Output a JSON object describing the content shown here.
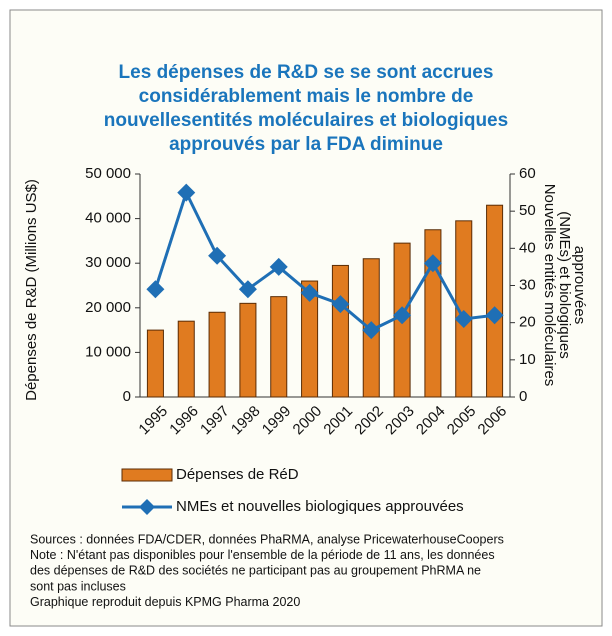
{
  "chart_data": {
    "type": "bar_line",
    "title": [
      "Les dépenses de R&D se se sont accrues",
      "considérablement mais le nombre de",
      "nouvellesentités moléculaires et biologiques",
      "approuvés par la FDA diminue"
    ],
    "y_label": "Dépenses de R&D (Millions US$)",
    "y2_label": [
      "Nouvelles entités moléculaires",
      "(NMEs) et biologiques",
      "approuvées"
    ],
    "categories": [
      "1995",
      "1996",
      "1997",
      "1998",
      "1999",
      "2000",
      "2001",
      "2002",
      "2003",
      "2004",
      "2005",
      "2006"
    ],
    "series": [
      {
        "name": "Dépenses de RéD",
        "type": "bar",
        "color": "#e07b20",
        "values": [
          15000,
          17000,
          19000,
          21000,
          22500,
          26000,
          29500,
          31000,
          34500,
          37500,
          39500,
          43000
        ]
      },
      {
        "name": "NMEs et nouvelles biologiques approuvées",
        "type": "line",
        "axis": "y2",
        "color": "#1f6fb5",
        "values": [
          29,
          55,
          38,
          29,
          35,
          28,
          25,
          18,
          22,
          36,
          21,
          22
        ]
      }
    ],
    "ylim": [
      0,
      50000
    ],
    "yticks": [
      {
        "value": 0,
        "label": "0"
      },
      {
        "value": 10000,
        "label": "10 000"
      },
      {
        "value": 20000,
        "label": "20 000"
      },
      {
        "value": 30000,
        "label": "30 000"
      },
      {
        "value": 40000,
        "label": "40 000"
      },
      {
        "value": 50000,
        "label": "50 000"
      }
    ],
    "y2lim": [
      0,
      60
    ],
    "y2ticks": [
      0,
      10,
      20,
      30,
      40,
      50,
      60
    ],
    "notes": [
      "Sources : données FDA/CDER, données PhaRMA, analyse PricewaterhouseCoopers",
      "Note : N'étant pas disponibles pour l'ensemble de la période de 11 ans, les données",
      "des dépenses de R&D des sociétés ne participant pas au groupement PhRMA ne",
      "sont pas incluses",
      "Graphique reproduit depuis KPMG Pharma 2020"
    ]
  }
}
